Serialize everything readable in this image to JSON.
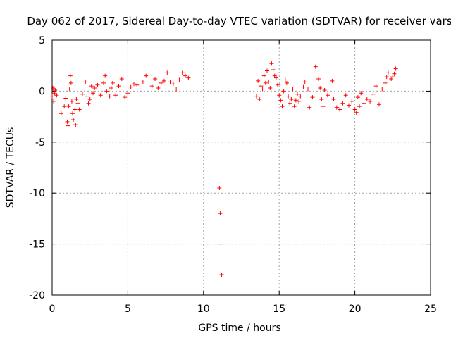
{
  "chart_data": {
    "type": "scatter",
    "title": "Day 062 of 2017, Sidereal Day-to-day VTEC variation (SDTVAR) for receiver vars",
    "xlabel": "GPS time / hours",
    "ylabel": "SDTVAR / TECUs",
    "xlim": [
      0,
      25
    ],
    "ylim": [
      -20,
      5
    ],
    "xticks": [
      0,
      5,
      10,
      15,
      20,
      25
    ],
    "yticks": [
      -20,
      -15,
      -10,
      -5,
      0,
      5
    ],
    "grid": true,
    "marker": "+",
    "color": "#ff0000",
    "series": [
      {
        "name": "vars",
        "x": [
          0.0,
          0.05,
          0.1,
          0.15,
          0.2,
          0.3,
          0.6,
          0.8,
          0.9,
          1.0,
          1.05,
          1.1,
          1.15,
          1.2,
          1.25,
          1.3,
          1.35,
          1.4,
          1.5,
          1.55,
          1.6,
          1.7,
          1.8,
          2.0,
          2.2,
          2.3,
          2.4,
          2.5,
          2.6,
          2.7,
          2.8,
          3.0,
          3.2,
          3.4,
          3.5,
          3.6,
          3.8,
          3.9,
          4.0,
          4.2,
          4.4,
          4.6,
          4.8,
          5.0,
          5.2,
          5.4,
          5.6,
          5.8,
          6.0,
          6.2,
          6.4,
          6.6,
          6.8,
          7.0,
          7.2,
          7.4,
          7.6,
          7.8,
          8.0,
          8.2,
          8.4,
          8.6,
          8.8,
          9.0,
          11.05,
          11.1,
          11.15,
          11.2,
          13.5,
          13.6,
          13.7,
          13.8,
          13.9,
          14.0,
          14.1,
          14.2,
          14.3,
          14.4,
          14.5,
          14.6,
          14.7,
          14.8,
          14.9,
          15.0,
          15.1,
          15.2,
          15.3,
          15.4,
          15.5,
          15.6,
          15.7,
          15.8,
          15.9,
          16.0,
          16.1,
          16.2,
          16.3,
          16.4,
          16.6,
          16.7,
          16.9,
          17.0,
          17.2,
          17.4,
          17.6,
          17.7,
          17.8,
          17.9,
          18.0,
          18.2,
          18.5,
          18.6,
          18.8,
          19.0,
          19.2,
          19.4,
          19.6,
          19.8,
          20.0,
          20.1,
          20.2,
          20.3,
          20.4,
          20.6,
          20.8,
          21.0,
          21.2,
          21.4,
          21.6,
          21.8,
          22.0,
          22.1,
          22.2,
          22.4,
          22.5,
          22.6,
          22.7
        ],
        "y": [
          -0.5,
          0.3,
          -1.0,
          -0.2,
          0.1,
          -0.4,
          -2.2,
          -1.5,
          -0.7,
          -3.0,
          -3.4,
          -1.5,
          0.2,
          1.5,
          0.8,
          -1.0,
          -2.2,
          -2.8,
          -1.8,
          -3.3,
          -0.8,
          -1.2,
          -1.8,
          -0.3,
          0.9,
          -0.5,
          -1.2,
          -0.8,
          0.5,
          -0.2,
          0.3,
          0.6,
          -0.4,
          0.8,
          1.5,
          0.0,
          -0.5,
          0.3,
          0.8,
          -0.4,
          0.5,
          1.2,
          -0.6,
          -0.2,
          0.4,
          0.7,
          0.6,
          0.2,
          0.9,
          1.5,
          1.1,
          0.5,
          1.2,
          0.3,
          0.8,
          1.0,
          1.8,
          0.9,
          0.7,
          0.2,
          1.1,
          1.8,
          1.5,
          1.3,
          -9.5,
          -12.0,
          -15.0,
          -18.0,
          -0.5,
          1.0,
          -0.8,
          0.5,
          0.2,
          1.5,
          0.8,
          2.0,
          0.9,
          0.3,
          2.7,
          2.1,
          1.5,
          1.3,
          0.6,
          -0.4,
          -0.9,
          -1.5,
          0.0,
          1.1,
          0.8,
          -0.5,
          -1.2,
          -0.8,
          0.2,
          -1.5,
          -0.9,
          -0.3,
          -1.0,
          -0.5,
          0.4,
          0.9,
          0.2,
          -1.6,
          -0.6,
          2.4,
          1.2,
          0.3,
          -0.8,
          -1.5,
          0.1,
          -0.4,
          1.0,
          -0.8,
          -1.6,
          -1.8,
          -1.2,
          -0.4,
          -1.4,
          -1.0,
          -1.8,
          -2.1,
          -0.6,
          -1.5,
          -0.2,
          -1.2,
          -0.8,
          -1.0,
          -0.3,
          0.5,
          -1.3,
          0.2,
          0.8,
          1.4,
          1.8,
          1.2,
          1.4,
          1.7,
          2.2
        ]
      }
    ]
  }
}
